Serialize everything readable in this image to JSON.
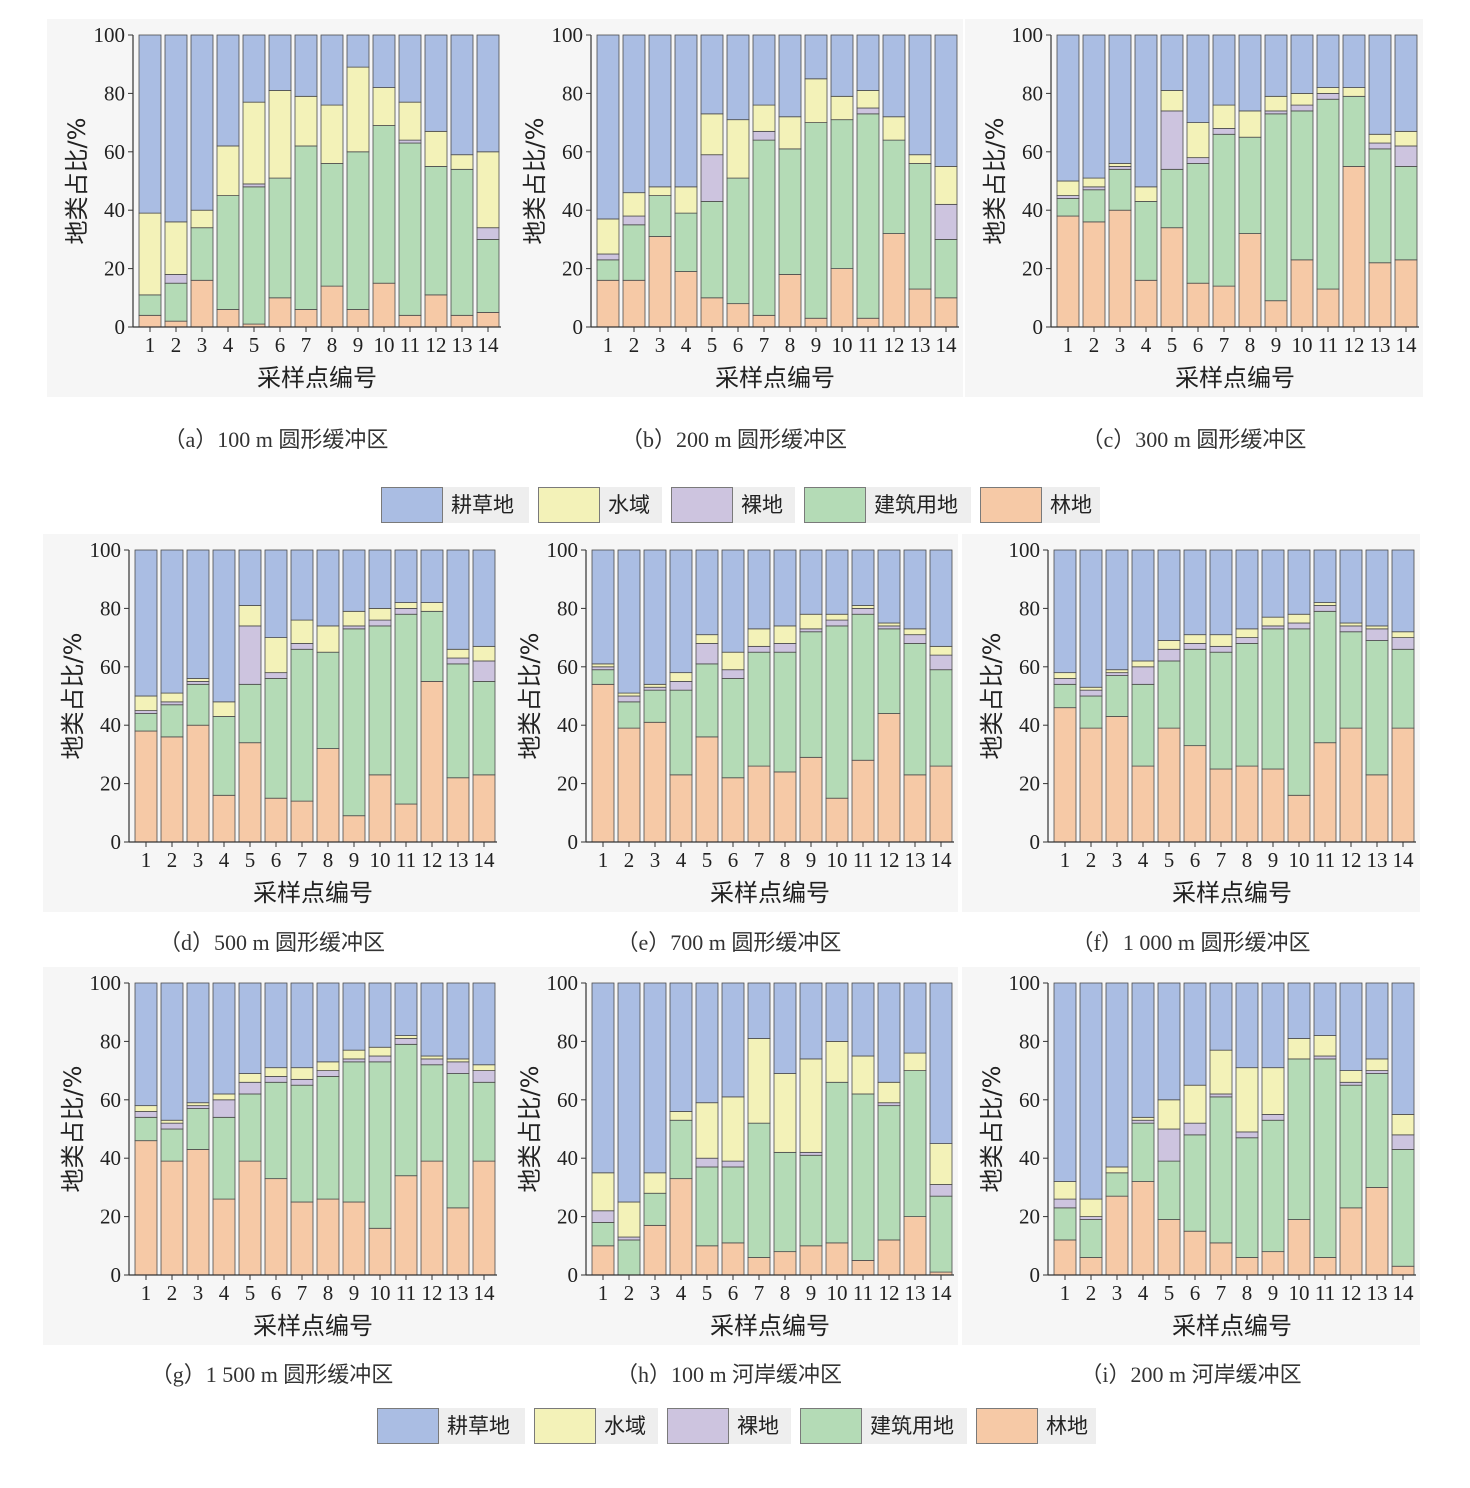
{
  "legend": [
    {
      "label": "耕草地",
      "color": "#aabde3"
    },
    {
      "label": "水域",
      "color": "#f3f2b8"
    },
    {
      "label": "裸地",
      "color": "#cdc4df"
    },
    {
      "label": "建筑用地",
      "color": "#b4dbb6"
    },
    {
      "label": "林地",
      "color": "#f6c9a6"
    }
  ],
  "chart_data": [
    {
      "type": "bar",
      "stacked": true,
      "title": "（a）100 m 圆形缓冲区",
      "xlabel": "采样点编号",
      "ylabel": "地类占比/%",
      "categories": [
        "1",
        "2",
        "3",
        "4",
        "5",
        "6",
        "7",
        "8",
        "9",
        "10",
        "11",
        "12",
        "13",
        "14"
      ],
      "ylim": [
        0,
        100
      ],
      "yticks": [
        0,
        20,
        40,
        60,
        80,
        100
      ],
      "series": [
        {
          "name": "林地",
          "values": [
            4,
            2,
            16,
            6,
            1,
            10,
            6,
            14,
            6,
            15,
            4,
            11,
            4,
            5
          ]
        },
        {
          "name": "建筑用地",
          "values": [
            7,
            13,
            18,
            39,
            47,
            41,
            56,
            42,
            54,
            54,
            59,
            44,
            50,
            25
          ]
        },
        {
          "name": "裸地",
          "values": [
            0,
            3,
            0,
            0,
            1,
            0,
            0,
            0,
            0,
            0,
            1,
            0,
            0,
            4
          ]
        },
        {
          "name": "水域",
          "values": [
            28,
            18,
            6,
            17,
            28,
            30,
            17,
            20,
            29,
            13,
            13,
            12,
            5,
            26
          ]
        },
        {
          "name": "耕草地",
          "values": [
            61,
            64,
            60,
            38,
            23,
            19,
            21,
            24,
            11,
            18,
            23,
            33,
            41,
            40
          ]
        }
      ]
    },
    {
      "type": "bar",
      "stacked": true,
      "title": "（b）200 m 圆形缓冲区",
      "xlabel": "采样点编号",
      "ylabel": "地类占比/%",
      "categories": [
        "1",
        "2",
        "3",
        "4",
        "5",
        "6",
        "7",
        "8",
        "9",
        "10",
        "11",
        "12",
        "13",
        "14"
      ],
      "ylim": [
        0,
        100
      ],
      "yticks": [
        0,
        20,
        40,
        60,
        80,
        100
      ],
      "series": [
        {
          "name": "林地",
          "values": [
            16,
            16,
            31,
            19,
            10,
            8,
            4,
            18,
            3,
            20,
            3,
            32,
            13,
            10
          ]
        },
        {
          "name": "建筑用地",
          "values": [
            7,
            19,
            14,
            20,
            33,
            43,
            60,
            43,
            67,
            51,
            70,
            32,
            43,
            20
          ]
        },
        {
          "name": "裸地",
          "values": [
            2,
            3,
            0,
            0,
            16,
            0,
            3,
            0,
            0,
            0,
            2,
            0,
            0,
            12
          ]
        },
        {
          "name": "水域",
          "values": [
            12,
            8,
            3,
            9,
            14,
            20,
            9,
            11,
            15,
            8,
            6,
            8,
            3,
            13
          ]
        },
        {
          "name": "耕草地",
          "values": [
            63,
            54,
            52,
            52,
            27,
            29,
            24,
            28,
            15,
            21,
            19,
            28,
            41,
            45
          ]
        }
      ]
    },
    {
      "type": "bar",
      "stacked": true,
      "title": "（c）300 m 圆形缓冲区",
      "xlabel": "采样点编号",
      "ylabel": "地类占比/%",
      "categories": [
        "1",
        "2",
        "3",
        "4",
        "5",
        "6",
        "7",
        "8",
        "9",
        "10",
        "11",
        "12",
        "13",
        "14"
      ],
      "ylim": [
        0,
        100
      ],
      "yticks": [
        0,
        20,
        40,
        60,
        80,
        100
      ],
      "series": [
        {
          "name": "林地",
          "values": [
            38,
            36,
            40,
            16,
            34,
            15,
            14,
            32,
            9,
            23,
            13,
            55,
            22,
            23
          ]
        },
        {
          "name": "建筑用地",
          "values": [
            6,
            11,
            14,
            27,
            20,
            41,
            52,
            33,
            64,
            51,
            65,
            24,
            39,
            32
          ]
        },
        {
          "name": "裸地",
          "values": [
            1,
            1,
            1,
            0,
            20,
            2,
            2,
            0,
            1,
            2,
            2,
            0,
            2,
            7
          ]
        },
        {
          "name": "水域",
          "values": [
            5,
            3,
            1,
            5,
            7,
            12,
            8,
            9,
            5,
            4,
            2,
            3,
            3,
            5
          ]
        },
        {
          "name": "耕草地",
          "values": [
            50,
            49,
            44,
            52,
            19,
            30,
            24,
            26,
            21,
            20,
            18,
            18,
            34,
            33
          ]
        }
      ]
    },
    {
      "type": "bar",
      "stacked": true,
      "title": "（d）500 m 圆形缓冲区",
      "xlabel": "采样点编号",
      "ylabel": "地类占比/%",
      "categories": [
        "1",
        "2",
        "3",
        "4",
        "5",
        "6",
        "7",
        "8",
        "9",
        "10",
        "11",
        "12",
        "13",
        "14"
      ],
      "ylim": [
        0,
        100
      ],
      "yticks": [
        0,
        20,
        40,
        60,
        80,
        100
      ],
      "series": [
        {
          "name": "林地",
          "values": [
            38,
            36,
            40,
            16,
            34,
            15,
            14,
            32,
            9,
            23,
            13,
            55,
            22,
            23
          ]
        },
        {
          "name": "建筑用地",
          "values": [
            6,
            11,
            14,
            27,
            20,
            41,
            52,
            33,
            64,
            51,
            65,
            24,
            39,
            32
          ]
        },
        {
          "name": "裸地",
          "values": [
            1,
            1,
            1,
            0,
            20,
            2,
            2,
            0,
            1,
            2,
            2,
            0,
            2,
            7
          ]
        },
        {
          "name": "水域",
          "values": [
            5,
            3,
            1,
            5,
            7,
            12,
            8,
            9,
            5,
            4,
            2,
            3,
            3,
            5
          ]
        },
        {
          "name": "耕草地",
          "values": [
            50,
            49,
            44,
            52,
            19,
            30,
            24,
            26,
            21,
            20,
            18,
            18,
            34,
            33
          ]
        }
      ]
    },
    {
      "type": "bar",
      "stacked": true,
      "title": "（e）700 m 圆形缓冲区",
      "xlabel": "采样点编号",
      "ylabel": "地类占比/%",
      "categories": [
        "1",
        "2",
        "3",
        "4",
        "5",
        "6",
        "7",
        "8",
        "9",
        "10",
        "11",
        "12",
        "13",
        "14"
      ],
      "ylim": [
        0,
        100
      ],
      "yticks": [
        0,
        20,
        40,
        60,
        80,
        100
      ],
      "series": [
        {
          "name": "林地",
          "values": [
            54,
            39,
            41,
            23,
            36,
            22,
            26,
            24,
            29,
            15,
            28,
            44,
            23,
            26
          ]
        },
        {
          "name": "建筑用地",
          "values": [
            5,
            9,
            11,
            29,
            25,
            34,
            39,
            41,
            43,
            59,
            50,
            29,
            45,
            33
          ]
        },
        {
          "name": "裸地",
          "values": [
            1,
            2,
            1,
            3,
            7,
            3,
            2,
            3,
            1,
            2,
            2,
            1,
            3,
            5
          ]
        },
        {
          "name": "水域",
          "values": [
            1,
            1,
            1,
            3,
            3,
            6,
            6,
            6,
            5,
            2,
            1,
            1,
            2,
            3
          ]
        },
        {
          "name": "耕草地",
          "values": [
            39,
            49,
            46,
            42,
            29,
            35,
            27,
            26,
            22,
            22,
            19,
            25,
            27,
            33
          ]
        }
      ]
    },
    {
      "type": "bar",
      "stacked": true,
      "title": "（f）1 000 m 圆形缓冲区",
      "xlabel": "采样点编号",
      "ylabel": "地类占比/%",
      "categories": [
        "1",
        "2",
        "3",
        "4",
        "5",
        "6",
        "7",
        "8",
        "9",
        "10",
        "11",
        "12",
        "13",
        "14"
      ],
      "ylim": [
        0,
        100
      ],
      "yticks": [
        0,
        20,
        40,
        60,
        80,
        100
      ],
      "series": [
        {
          "name": "林地",
          "values": [
            46,
            39,
            43,
            26,
            39,
            33,
            25,
            26,
            25,
            16,
            34,
            39,
            23,
            39
          ]
        },
        {
          "name": "建筑用地",
          "values": [
            8,
            11,
            14,
            28,
            23,
            33,
            40,
            42,
            48,
            57,
            45,
            33,
            46,
            27
          ]
        },
        {
          "name": "裸地",
          "values": [
            2,
            2,
            1,
            6,
            4,
            2,
            2,
            2,
            1,
            2,
            2,
            2,
            4,
            4
          ]
        },
        {
          "name": "水域",
          "values": [
            2,
            1,
            1,
            2,
            3,
            3,
            4,
            3,
            3,
            3,
            1,
            1,
            1,
            2
          ]
        },
        {
          "name": "耕草地",
          "values": [
            42,
            47,
            41,
            38,
            31,
            29,
            29,
            27,
            23,
            22,
            18,
            25,
            26,
            28
          ]
        }
      ]
    },
    {
      "type": "bar",
      "stacked": true,
      "title": "（g）1 500 m 圆形缓冲区",
      "xlabel": "采样点编号",
      "ylabel": "地类占比/%",
      "categories": [
        "1",
        "2",
        "3",
        "4",
        "5",
        "6",
        "7",
        "8",
        "9",
        "10",
        "11",
        "12",
        "13",
        "14"
      ],
      "ylim": [
        0,
        100
      ],
      "yticks": [
        0,
        20,
        40,
        60,
        80,
        100
      ],
      "series": [
        {
          "name": "林地",
          "values": [
            46,
            39,
            43,
            26,
            39,
            33,
            25,
            26,
            25,
            16,
            34,
            39,
            23,
            39
          ]
        },
        {
          "name": "建筑用地",
          "values": [
            8,
            11,
            14,
            28,
            23,
            33,
            40,
            42,
            48,
            57,
            45,
            33,
            46,
            27
          ]
        },
        {
          "name": "裸地",
          "values": [
            2,
            2,
            1,
            6,
            4,
            2,
            2,
            2,
            1,
            2,
            2,
            2,
            4,
            4
          ]
        },
        {
          "name": "水域",
          "values": [
            2,
            1,
            1,
            2,
            3,
            3,
            4,
            3,
            3,
            3,
            1,
            1,
            1,
            2
          ]
        },
        {
          "name": "耕草地",
          "values": [
            42,
            47,
            41,
            38,
            31,
            29,
            29,
            27,
            23,
            22,
            18,
            25,
            26,
            28
          ]
        }
      ]
    },
    {
      "type": "bar",
      "stacked": true,
      "title": "（h）100 m 河岸缓冲区",
      "xlabel": "采样点编号",
      "ylabel": "地类占比/%",
      "categories": [
        "1",
        "2",
        "3",
        "4",
        "5",
        "6",
        "7",
        "8",
        "9",
        "10",
        "11",
        "12",
        "13",
        "14"
      ],
      "ylim": [
        0,
        100
      ],
      "yticks": [
        0,
        20,
        40,
        60,
        80,
        100
      ],
      "series": [
        {
          "name": "林地",
          "values": [
            10,
            0,
            17,
            33,
            10,
            11,
            6,
            8,
            10,
            11,
            5,
            12,
            20,
            1
          ]
        },
        {
          "name": "建筑用地",
          "values": [
            8,
            12,
            11,
            20,
            27,
            26,
            46,
            34,
            31,
            55,
            57,
            46,
            50,
            26
          ]
        },
        {
          "name": "裸地",
          "values": [
            4,
            1,
            0,
            0,
            3,
            2,
            0,
            0,
            1,
            0,
            0,
            1,
            0,
            4
          ]
        },
        {
          "name": "水域",
          "values": [
            13,
            12,
            7,
            3,
            19,
            22,
            29,
            27,
            32,
            14,
            13,
            7,
            6,
            14
          ]
        },
        {
          "name": "耕草地",
          "values": [
            65,
            75,
            65,
            44,
            41,
            39,
            19,
            31,
            26,
            20,
            25,
            34,
            24,
            55
          ]
        }
      ]
    },
    {
      "type": "bar",
      "stacked": true,
      "title": "（i）200 m 河岸缓冲区",
      "xlabel": "采样点编号",
      "ylabel": "地类占比/%",
      "categories": [
        "1",
        "2",
        "3",
        "4",
        "5",
        "6",
        "7",
        "8",
        "9",
        "10",
        "11",
        "12",
        "13",
        "14"
      ],
      "ylim": [
        0,
        100
      ],
      "yticks": [
        0,
        20,
        40,
        60,
        80,
        100
      ],
      "series": [
        {
          "name": "林地",
          "values": [
            12,
            6,
            27,
            32,
            19,
            15,
            11,
            6,
            8,
            19,
            6,
            23,
            30,
            3
          ]
        },
        {
          "name": "建筑用地",
          "values": [
            11,
            13,
            8,
            20,
            20,
            33,
            50,
            41,
            45,
            55,
            68,
            42,
            39,
            40
          ]
        },
        {
          "name": "裸地",
          "values": [
            3,
            1,
            0,
            1,
            11,
            4,
            1,
            2,
            2,
            0,
            1,
            1,
            1,
            5
          ]
        },
        {
          "name": "水域",
          "values": [
            6,
            6,
            2,
            1,
            10,
            13,
            15,
            22,
            16,
            7,
            7,
            4,
            4,
            7
          ]
        },
        {
          "name": "耕草地",
          "values": [
            68,
            74,
            63,
            46,
            40,
            35,
            23,
            29,
            29,
            19,
            18,
            30,
            26,
            45
          ]
        }
      ]
    }
  ]
}
